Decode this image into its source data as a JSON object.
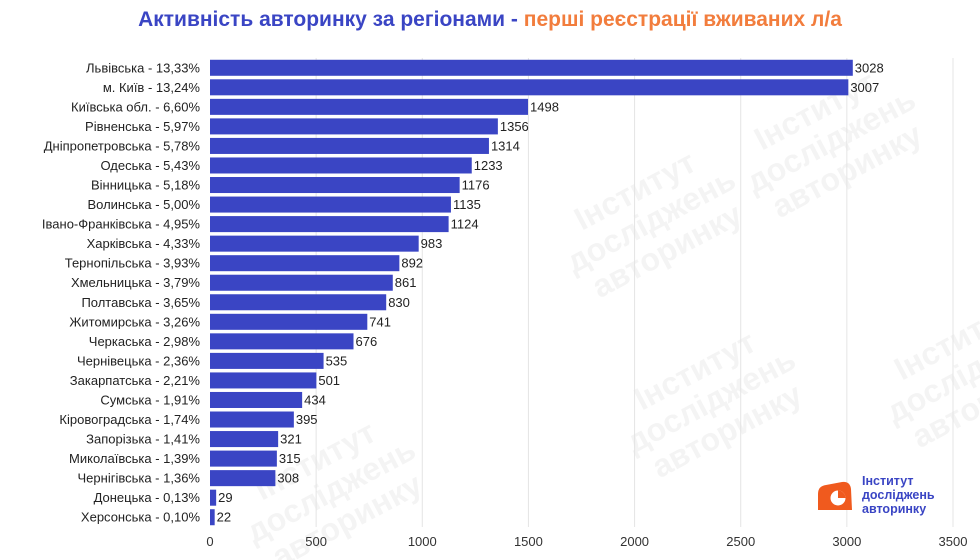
{
  "title": {
    "part1": "Активність авторинку за регіонами",
    "separator": "-",
    "part2": "перші реєстрації вживаних л/а"
  },
  "colors": {
    "bar": "#3a45c4",
    "title_primary": "#3a45c4",
    "title_accent": "#f27d3d",
    "logo_orange": "#f05a1e",
    "grid": "#e4e4e4",
    "watermark": "#ececec"
  },
  "logo": {
    "lines": [
      "Інститут",
      "досліджень",
      "авторинку"
    ]
  },
  "watermark": {
    "lines": [
      "Інститут",
      "досліджень",
      "авторинку"
    ]
  },
  "chart_data": {
    "type": "bar",
    "orientation": "horizontal",
    "title": "Активність авторинку за регіонами - перші реєстрації вживаних л/а",
    "xlabel": "",
    "ylabel": "",
    "xlim": [
      0,
      3500
    ],
    "xticks": [
      0,
      500,
      1000,
      1500,
      2000,
      2500,
      3000,
      3500
    ],
    "grid": true,
    "categories": [
      "Львівська - 13,33%",
      "м. Київ - 13,24%",
      "Київська обл. - 6,60%",
      "Рівненська - 5,97%",
      "Дніпропетровська - 5,78%",
      "Одеська - 5,43%",
      "Вінницька - 5,18%",
      "Волинська - 5,00%",
      "Івано-Франківська - 4,95%",
      "Харківська - 4,33%",
      "Тернопільська - 3,93%",
      "Хмельницька - 3,79%",
      "Полтавська - 3,65%",
      "Житомирська - 3,26%",
      "Черкаська - 2,98%",
      "Чернівецька - 2,36%",
      "Закарпатська - 2,21%",
      "Сумська - 1,91%",
      "Кіровоградська - 1,74%",
      "Запорізька - 1,41%",
      "Миколаївська - 1,39%",
      "Чернігівська - 1,36%",
      "Донецька - 0,13%",
      "Херсонська - 0,10%"
    ],
    "values": [
      3028,
      3007,
      1498,
      1356,
      1314,
      1233,
      1176,
      1135,
      1124,
      983,
      892,
      861,
      830,
      741,
      676,
      535,
      501,
      434,
      395,
      321,
      315,
      308,
      29,
      22
    ]
  }
}
